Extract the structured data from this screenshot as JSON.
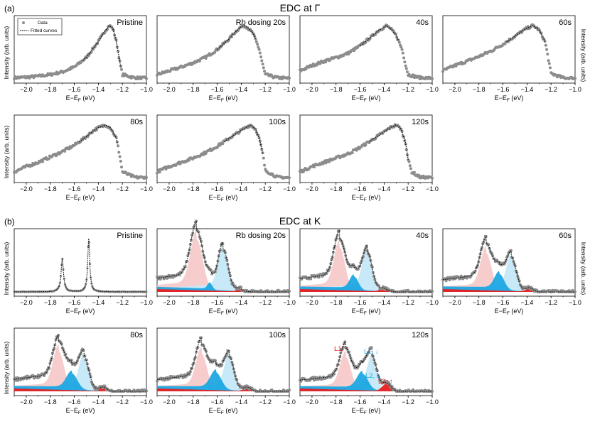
{
  "sections": [
    {
      "letter": "(a)",
      "title": "EDC at Γ"
    },
    {
      "letter": "(b)",
      "title": "EDC at K"
    }
  ],
  "ylabel": "Intensity (arb. units)",
  "xlabel": "E−E",
  "xlabel_sub": "F",
  "xlabel_unit": " (eV)",
  "legend": {
    "data": "Data",
    "fit": "Fitted curves"
  },
  "colors": {
    "data": "#8c8c8c",
    "fit": "#111111",
    "L1_up": "#f7c9c9",
    "L1_down": "#c5e8f7",
    "L2_down": "#1ea7e1",
    "L2_up": "#e82020"
  },
  "annotations": [
    {
      "text": "L1, ↑",
      "color": "#e82020"
    },
    {
      "text": "L1, ↓",
      "color": "#1ea7e1"
    },
    {
      "text": "L2, ↓",
      "color": "#1ea7e1"
    },
    {
      "text": "L2, ↑",
      "color": "#e82020"
    }
  ],
  "chart_data": [
    {
      "type": "scatter",
      "section": "gamma",
      "label": "Pristine",
      "xlim": [
        -2.1,
        -1.0
      ],
      "xticks": [
        -2.0,
        -1.8,
        -1.6,
        -1.4,
        -1.2,
        -1.0
      ],
      "peak_center": -1.31,
      "baseline_slope": 0.0,
      "points": [
        [
          -2.1,
          0.02
        ],
        [
          -2.0,
          0.03
        ],
        [
          -1.9,
          0.05
        ],
        [
          -1.8,
          0.08
        ],
        [
          -1.7,
          0.13
        ],
        [
          -1.6,
          0.22
        ],
        [
          -1.5,
          0.4
        ],
        [
          -1.45,
          0.55
        ],
        [
          -1.4,
          0.7
        ],
        [
          -1.35,
          0.88
        ],
        [
          -1.31,
          1.0
        ],
        [
          -1.28,
          0.95
        ],
        [
          -1.25,
          0.7
        ],
        [
          -1.22,
          0.3
        ],
        [
          -1.2,
          0.08
        ],
        [
          -1.1,
          0.02
        ],
        [
          -1.0,
          0.01
        ]
      ]
    },
    {
      "type": "scatter",
      "section": "gamma",
      "label": "Rb dosing 20s",
      "xlim": [
        -2.1,
        -1.0
      ],
      "xticks": [
        -2.0,
        -1.8,
        -1.6,
        -1.4,
        -1.2,
        -1.0
      ],
      "peak_center": -1.38,
      "baseline_slope": 0.25,
      "points": [
        [
          -2.1,
          0.08
        ],
        [
          -2.0,
          0.15
        ],
        [
          -1.9,
          0.22
        ],
        [
          -1.8,
          0.3
        ],
        [
          -1.7,
          0.4
        ],
        [
          -1.6,
          0.55
        ],
        [
          -1.5,
          0.75
        ],
        [
          -1.45,
          0.88
        ],
        [
          -1.4,
          0.98
        ],
        [
          -1.38,
          1.0
        ],
        [
          -1.35,
          0.97
        ],
        [
          -1.3,
          0.85
        ],
        [
          -1.25,
          0.55
        ],
        [
          -1.22,
          0.25
        ],
        [
          -1.2,
          0.08
        ],
        [
          -1.1,
          0.02
        ],
        [
          -1.0,
          0.01
        ]
      ]
    },
    {
      "type": "scatter",
      "section": "gamma",
      "label": "40s",
      "xlim": [
        -2.1,
        -1.0
      ],
      "xticks": [
        -2.0,
        -1.8,
        -1.6,
        -1.4,
        -1.2,
        -1.0
      ],
      "peak_center": -1.38,
      "baseline_slope": 0.35,
      "points": [
        [
          -2.1,
          0.15
        ],
        [
          -2.0,
          0.25
        ],
        [
          -1.9,
          0.33
        ],
        [
          -1.8,
          0.4
        ],
        [
          -1.7,
          0.48
        ],
        [
          -1.6,
          0.62
        ],
        [
          -1.5,
          0.8
        ],
        [
          -1.45,
          0.9
        ],
        [
          -1.4,
          0.97
        ],
        [
          -1.38,
          1.0
        ],
        [
          -1.35,
          0.95
        ],
        [
          -1.3,
          0.82
        ],
        [
          -1.25,
          0.55
        ],
        [
          -1.22,
          0.25
        ],
        [
          -1.2,
          0.08
        ],
        [
          -1.1,
          0.02
        ],
        [
          -1.0,
          0.01
        ]
      ]
    },
    {
      "type": "scatter",
      "section": "gamma",
      "label": "60s",
      "xlim": [
        -2.1,
        -1.0
      ],
      "xticks": [
        -2.0,
        -1.8,
        -1.6,
        -1.4,
        -1.2,
        -1.0
      ],
      "peak_center": -1.35,
      "baseline_slope": 0.35,
      "points": [
        [
          -2.1,
          0.15
        ],
        [
          -2.0,
          0.25
        ],
        [
          -1.9,
          0.33
        ],
        [
          -1.8,
          0.42
        ],
        [
          -1.7,
          0.52
        ],
        [
          -1.6,
          0.65
        ],
        [
          -1.5,
          0.8
        ],
        [
          -1.45,
          0.88
        ],
        [
          -1.4,
          0.95
        ],
        [
          -1.35,
          1.0
        ],
        [
          -1.3,
          0.92
        ],
        [
          -1.25,
          0.7
        ],
        [
          -1.22,
          0.35
        ],
        [
          -1.2,
          0.1
        ],
        [
          -1.1,
          0.02
        ],
        [
          -1.0,
          0.01
        ]
      ]
    },
    {
      "type": "scatter",
      "section": "gamma",
      "label": "80s",
      "xlim": [
        -2.1,
        -1.0
      ],
      "xticks": [
        -2.0,
        -1.8,
        -1.6,
        -1.4,
        -1.2,
        -1.0
      ],
      "peak_center": -1.34,
      "baseline_slope": 0.3,
      "points": [
        [
          -2.1,
          0.12
        ],
        [
          -2.0,
          0.22
        ],
        [
          -1.9,
          0.3
        ],
        [
          -1.8,
          0.4
        ],
        [
          -1.7,
          0.5
        ],
        [
          -1.6,
          0.62
        ],
        [
          -1.5,
          0.78
        ],
        [
          -1.45,
          0.88
        ],
        [
          -1.4,
          0.95
        ],
        [
          -1.34,
          1.0
        ],
        [
          -1.3,
          0.95
        ],
        [
          -1.25,
          0.75
        ],
        [
          -1.22,
          0.4
        ],
        [
          -1.2,
          0.12
        ],
        [
          -1.1,
          0.02
        ],
        [
          -1.0,
          0.01
        ]
      ]
    },
    {
      "type": "scatter",
      "section": "gamma",
      "label": "100s",
      "xlim": [
        -2.1,
        -1.0
      ],
      "xticks": [
        -2.0,
        -1.8,
        -1.6,
        -1.4,
        -1.2,
        -1.0
      ],
      "peak_center": -1.32,
      "baseline_slope": 0.28,
      "points": [
        [
          -2.1,
          0.12
        ],
        [
          -2.0,
          0.22
        ],
        [
          -1.9,
          0.3
        ],
        [
          -1.8,
          0.38
        ],
        [
          -1.7,
          0.48
        ],
        [
          -1.6,
          0.6
        ],
        [
          -1.5,
          0.75
        ],
        [
          -1.4,
          0.9
        ],
        [
          -1.35,
          0.97
        ],
        [
          -1.32,
          1.0
        ],
        [
          -1.28,
          0.92
        ],
        [
          -1.25,
          0.75
        ],
        [
          -1.22,
          0.45
        ],
        [
          -1.2,
          0.15
        ],
        [
          -1.1,
          0.02
        ],
        [
          -1.0,
          0.01
        ]
      ]
    },
    {
      "type": "scatter",
      "section": "gamma",
      "label": "120s",
      "xlim": [
        -2.1,
        -1.0
      ],
      "xticks": [
        -2.0,
        -1.8,
        -1.6,
        -1.4,
        -1.2,
        -1.0
      ],
      "peak_center": -1.3,
      "baseline_slope": 0.3,
      "points": [
        [
          -2.1,
          0.12
        ],
        [
          -2.0,
          0.22
        ],
        [
          -1.9,
          0.3
        ],
        [
          -1.8,
          0.38
        ],
        [
          -1.7,
          0.46
        ],
        [
          -1.6,
          0.58
        ],
        [
          -1.5,
          0.72
        ],
        [
          -1.4,
          0.87
        ],
        [
          -1.35,
          0.95
        ],
        [
          -1.3,
          1.0
        ],
        [
          -1.26,
          0.93
        ],
        [
          -1.22,
          0.65
        ],
        [
          -1.2,
          0.35
        ],
        [
          -1.17,
          0.12
        ],
        [
          -1.1,
          0.02
        ],
        [
          -1.0,
          0.01
        ]
      ]
    },
    {
      "type": "area",
      "section": "K",
      "label": "Pristine",
      "xlim": [
        -2.1,
        -1.0
      ],
      "xticks": [
        -2.0,
        -1.8,
        -1.6,
        -1.4,
        -1.2,
        -1.0
      ],
      "components": [],
      "peaks": [
        {
          "center": -1.7,
          "height": 0.62,
          "width": 0.012
        },
        {
          "center": -1.48,
          "height": 1.0,
          "width": 0.01
        }
      ]
    },
    {
      "type": "area",
      "section": "K",
      "label": "Rb dosing 20s",
      "xlim": [
        -2.1,
        -1.0
      ],
      "xticks": [
        -2.0,
        -1.8,
        -1.6,
        -1.4,
        -1.2,
        -1.0
      ],
      "components": [
        {
          "name": "L1_up",
          "center": -1.77,
          "height": 0.95,
          "width": 0.05
        },
        {
          "name": "L1_down",
          "center": -1.55,
          "height": 0.75,
          "width": 0.04
        },
        {
          "name": "L2_down",
          "center": -1.66,
          "height": 0.12,
          "width": 0.02
        },
        {
          "name": "L2_up",
          "center": -1.42,
          "height": 0.05,
          "width": 0.02
        }
      ]
    },
    {
      "type": "area",
      "section": "K",
      "label": "40s",
      "xlim": [
        -2.1,
        -1.0
      ],
      "xticks": [
        -2.0,
        -1.8,
        -1.6,
        -1.4,
        -1.2,
        -1.0
      ],
      "components": [
        {
          "name": "L1_up",
          "center": -1.77,
          "height": 0.8,
          "width": 0.045
        },
        {
          "name": "L1_down",
          "center": -1.54,
          "height": 0.7,
          "width": 0.04
        },
        {
          "name": "L2_down",
          "center": -1.65,
          "height": 0.25,
          "width": 0.035
        },
        {
          "name": "L2_up",
          "center": -1.41,
          "height": 0.05,
          "width": 0.03
        }
      ]
    },
    {
      "type": "area",
      "section": "K",
      "label": "60s",
      "xlim": [
        -2.1,
        -1.0
      ],
      "xticks": [
        -2.0,
        -1.8,
        -1.6,
        -1.4,
        -1.2,
        -1.0
      ],
      "components": [
        {
          "name": "L1_up",
          "center": -1.74,
          "height": 0.7,
          "width": 0.045
        },
        {
          "name": "L1_down",
          "center": -1.53,
          "height": 0.6,
          "width": 0.04
        },
        {
          "name": "L2_down",
          "center": -1.63,
          "height": 0.3,
          "width": 0.04
        },
        {
          "name": "L2_up",
          "center": -1.38,
          "height": 0.06,
          "width": 0.03
        }
      ]
    },
    {
      "type": "area",
      "section": "K",
      "label": "80s",
      "xlim": [
        -2.1,
        -1.0
      ],
      "xticks": [
        -2.0,
        -1.8,
        -1.6,
        -1.4,
        -1.2,
        -1.0
      ],
      "components": [
        {
          "name": "L1_up",
          "center": -1.73,
          "height": 0.72,
          "width": 0.045
        },
        {
          "name": "L1_down",
          "center": -1.52,
          "height": 0.6,
          "width": 0.04
        },
        {
          "name": "L2_down",
          "center": -1.62,
          "height": 0.3,
          "width": 0.045
        },
        {
          "name": "L2_up",
          "center": -1.36,
          "height": 0.07,
          "width": 0.03
        }
      ]
    },
    {
      "type": "area",
      "section": "K",
      "label": "100s",
      "xlim": [
        -2.1,
        -1.0
      ],
      "xticks": [
        -2.0,
        -1.8,
        -1.6,
        -1.4,
        -1.2,
        -1.0
      ],
      "components": [
        {
          "name": "L1_up",
          "center": -1.73,
          "height": 0.68,
          "width": 0.045
        },
        {
          "name": "L1_down",
          "center": -1.5,
          "height": 0.6,
          "width": 0.04
        },
        {
          "name": "L2_down",
          "center": -1.61,
          "height": 0.32,
          "width": 0.045
        },
        {
          "name": "L2_up",
          "center": -1.35,
          "height": 0.07,
          "width": 0.03
        }
      ]
    },
    {
      "type": "area",
      "section": "K",
      "label": "120s",
      "xlim": [
        -2.1,
        -1.0
      ],
      "xticks": [
        -2.0,
        -1.8,
        -1.6,
        -1.4,
        -1.2,
        -1.0
      ],
      "components": [
        {
          "name": "L1_up",
          "center": -1.72,
          "height": 0.62,
          "width": 0.045
        },
        {
          "name": "L1_down",
          "center": -1.5,
          "height": 0.58,
          "width": 0.04
        },
        {
          "name": "L2_down",
          "center": -1.58,
          "height": 0.3,
          "width": 0.045
        },
        {
          "name": "L2_up",
          "center": -1.38,
          "height": 0.14,
          "width": 0.035
        }
      ]
    }
  ]
}
